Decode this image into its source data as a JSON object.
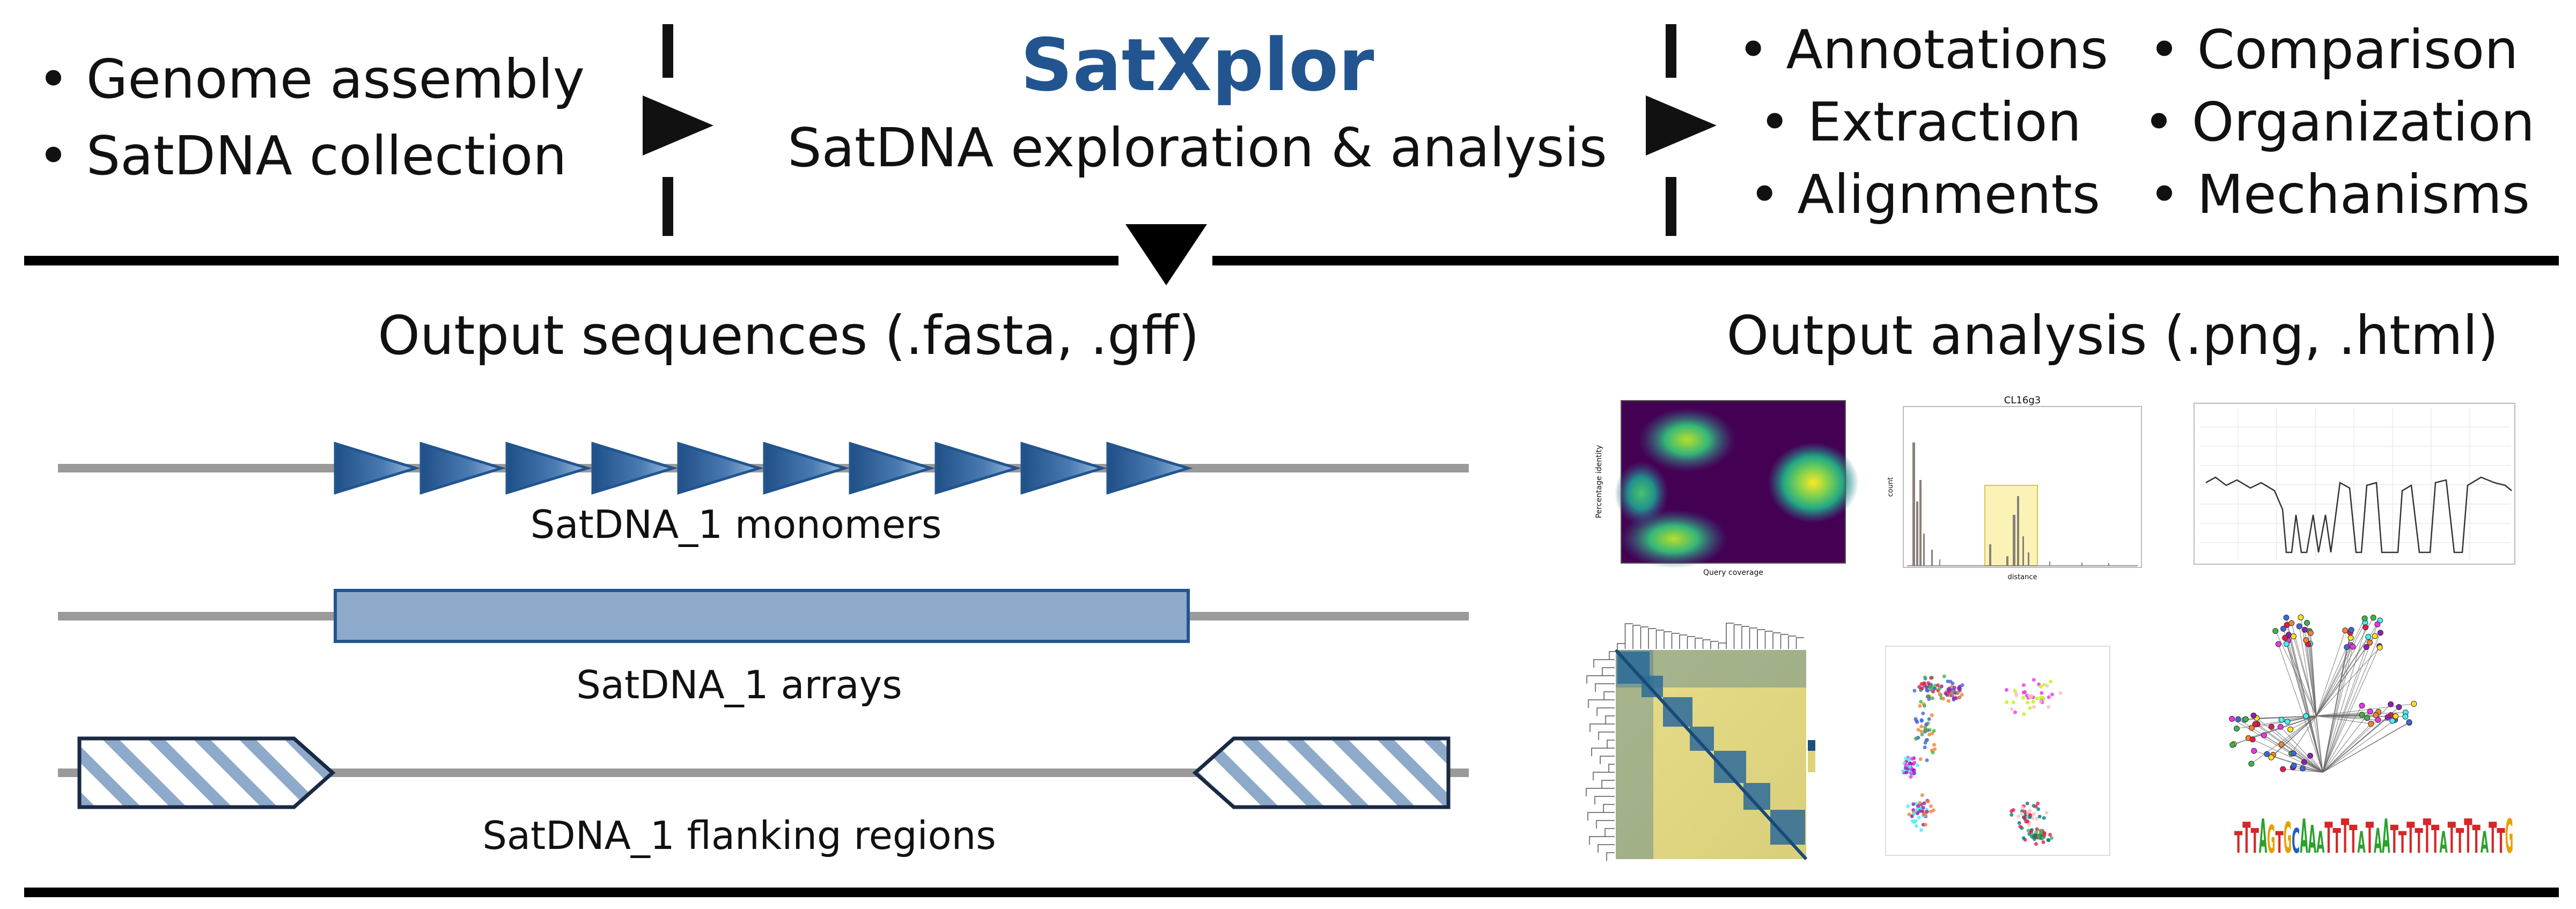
{
  "inputs": [
    "• Genome assembly",
    "• SatDNA collection"
  ],
  "center": {
    "title": "SatXplor",
    "subtitle": "SatDNA exploration & analysis"
  },
  "features": {
    "col1": [
      "• Annotations",
      "• Extraction",
      "• Alignments"
    ],
    "col2": [
      "• Comparison",
      "• Organization",
      "• Mechanisms"
    ]
  },
  "sections": {
    "sequences": "Output sequences (.fasta, .gff)",
    "analysis": "Output analysis (.png, .html)"
  },
  "tracks": {
    "monomers": "SatDNA_1 monomers",
    "arrays": "SatDNA_1 arrays",
    "flanking": "SatDNA_1 flanking regions"
  },
  "thumbnails": {
    "histogram_title": "CL16g3",
    "histogram_xlabel": "distance",
    "histogram_ylabel": "count",
    "density_xlabel": "Query coverage",
    "density_ylabel": "Percentage identity",
    "logo_text": "TTTAGTGCAAATTTTATAATTTTTTATTTTATTG"
  },
  "colors": {
    "accent": "#22558f",
    "triangle": "#2b5f98",
    "array_fill": "#8eaacb",
    "track_line": "#9a9a9a",
    "rule": "#000000"
  }
}
